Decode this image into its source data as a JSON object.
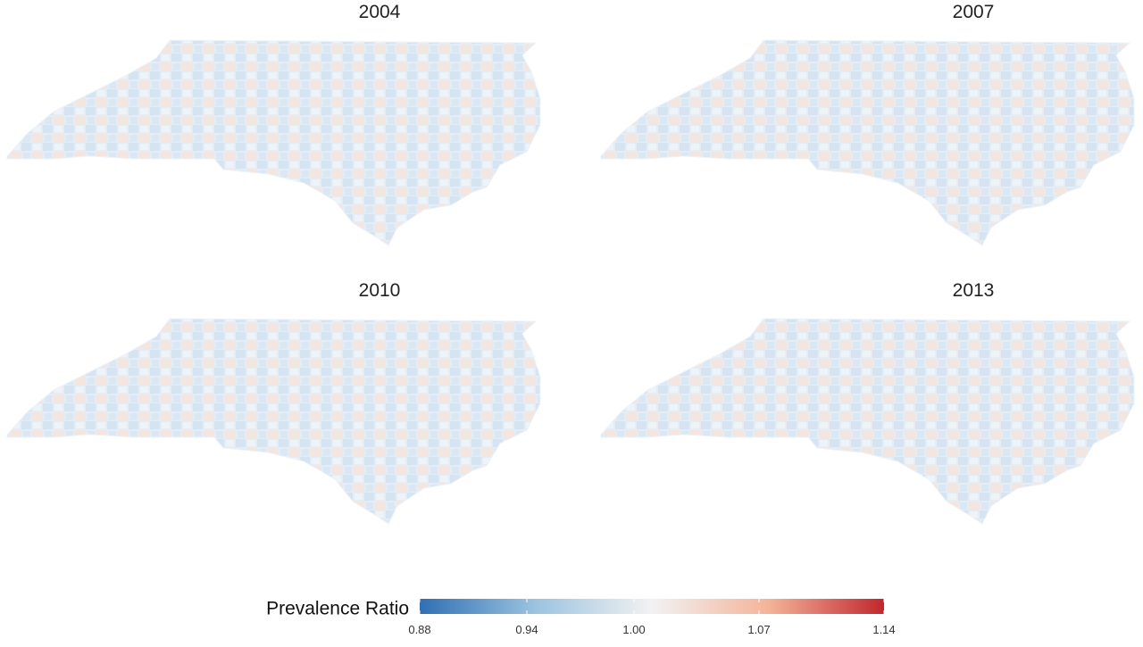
{
  "panels": [
    {
      "title": "2004"
    },
    {
      "title": "2007"
    },
    {
      "title": "2010"
    },
    {
      "title": "2013"
    }
  ],
  "legend": {
    "title": "Prevalence Ratio",
    "lim": [
      0.88,
      1.14
    ],
    "ticks": [
      0.88,
      0.94,
      {
        "value": 1,
        "label": "1.00"
      },
      1.07,
      1.14
    ],
    "colors": [
      "#2f6fb3",
      "#9cc3e0",
      "#f2f2f2",
      "#f4b49a",
      "#c1272d"
    ]
  }
}
